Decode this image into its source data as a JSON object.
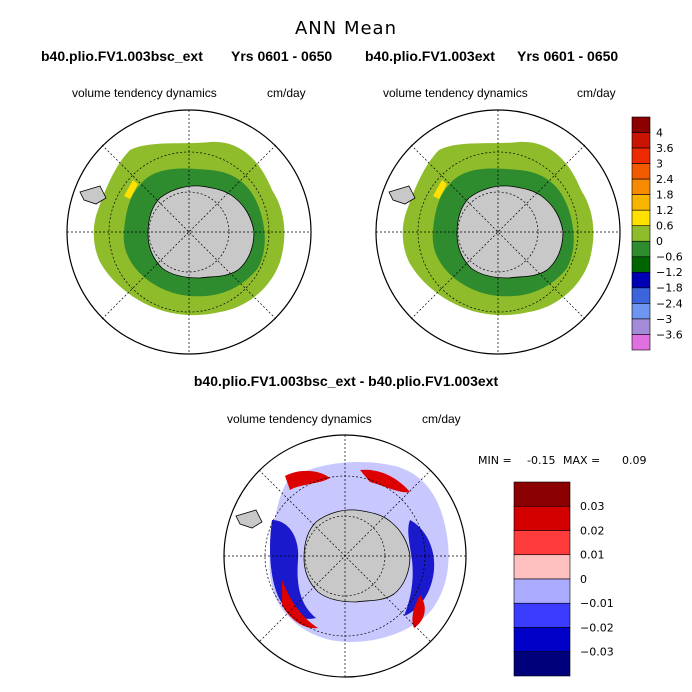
{
  "figure": {
    "title": "ANN Mean",
    "panel_left": {
      "case": "b40.plio.FV1.003bsc_ext",
      "years": "Yrs 0601 - 0650",
      "variable": "volume tendency dynamics",
      "units": "cm/day"
    },
    "panel_right": {
      "case": "b40.plio.FV1.003ext",
      "years": "Yrs 0601 - 0650",
      "variable": "volume tendency dynamics",
      "units": "cm/day"
    },
    "panel_diff": {
      "title": "b40.plio.FV1.003bsc_ext - b40.plio.FV1.003ext",
      "variable": "volume tendency dynamics",
      "units": "cm/day",
      "min_label": "MIN =",
      "min_value": "-0.15",
      "max_label": "MAX =",
      "max_value": "0.09"
    }
  },
  "colorbar_top": {
    "labels": [
      "4",
      "3.6",
      "3",
      "2.4",
      "1.8",
      "1.2",
      "0.6",
      "0",
      "−0.6",
      "−1.2",
      "−1.8",
      "−2.4",
      "−3",
      "−3.6"
    ],
    "colors": [
      "#8b0000",
      "#c81400",
      "#ee2b00",
      "#f25a00",
      "#f78a00",
      "#f7b400",
      "#ffe000",
      "#8fbc2a",
      "#2e8b2e",
      "#006400",
      "#0000b4",
      "#3c64dc",
      "#6e96f0",
      "#a28cd8",
      "#e070e0"
    ]
  },
  "colorbar_diff": {
    "labels": [
      "0.03",
      "0.02",
      "0.01",
      "0",
      "−0.01",
      "−0.02",
      "−0.03"
    ],
    "colors": [
      "#8b0000",
      "#d40000",
      "#ff3c3c",
      "#ffc0c0",
      "#aaaaff",
      "#3c3cff",
      "#0000c8",
      "#00007a"
    ]
  },
  "map_colors": {
    "land": "#c8c8c8",
    "outer_band": "#8fbc2a",
    "inner_band": "#2e8b2e",
    "yellow_patch": "#ffe000",
    "diff_red": "#dd0000",
    "diff_blue": "#1a1acc",
    "diff_pale": "#c8c8ff"
  }
}
